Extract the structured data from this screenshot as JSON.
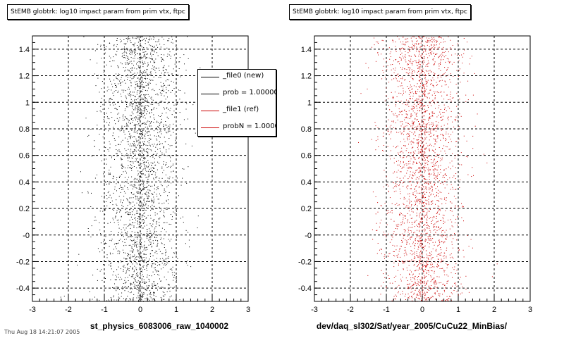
{
  "chart_data": [
    {
      "type": "scatter",
      "title": "StEMB globtrk: log10 impact param from prim vtx, ftpc",
      "xlabel": "st_physics_6083006_raw_1040002",
      "ylabel": "",
      "xlim": [
        -3,
        3
      ],
      "ylim": [
        -0.5,
        1.5
      ],
      "x_ticks": [
        -3,
        -2,
        -1,
        0,
        1,
        2,
        3
      ],
      "x_tick_labels": [
        "-3",
        "-2",
        "-1",
        "0",
        "1",
        "2",
        "3"
      ],
      "y_ticks": [
        -0.4,
        -0.2,
        0,
        0.2,
        0.4,
        0.6,
        0.8,
        1,
        1.2,
        1.4
      ],
      "y_tick_labels": [
        "-0.4",
        "-0.2",
        "-0",
        "0.2",
        "0.4",
        "0.6",
        "0.8",
        "1",
        "1.2",
        "1.4"
      ],
      "grid": true,
      "series": [
        {
          "name": "_file0 (new)",
          "color": "#000000",
          "distribution": "x centered near 0, spread about 0.6, uniform in y over range"
        }
      ],
      "legend": {
        "placement": "top-right",
        "entries": [
          {
            "label": "_file0 (new)",
            "color": "#000000"
          },
          {
            "label": "prob = 1.000000",
            "color": "#000000"
          },
          {
            "label": "_file1 (ref)",
            "color": "#cc0000"
          },
          {
            "label": "probN = 1.000000",
            "color": "#cc0000"
          }
        ]
      }
    },
    {
      "type": "scatter",
      "title": "StEMB globtrk: log10 impact param from prim vtx, ftpc",
      "xlabel": "dev/daq_sl302/Sat/year_2005/CuCu22_MinBias/",
      "ylabel": "",
      "xlim": [
        -3,
        3
      ],
      "ylim": [
        -0.5,
        1.5
      ],
      "x_ticks": [
        -3,
        -2,
        -1,
        0,
        1,
        2,
        3
      ],
      "x_tick_labels": [
        "-3",
        "-2",
        "-1",
        "0",
        "1",
        "2",
        "3"
      ],
      "y_ticks": [
        -0.4,
        -0.2,
        0,
        0.2,
        0.4,
        0.6,
        0.8,
        1,
        1.2,
        1.4
      ],
      "y_tick_labels": [
        "-0.4",
        "-0.2",
        "-0",
        "0.2",
        "0.4",
        "0.6",
        "0.8",
        "1",
        "1.2",
        "1.4"
      ],
      "grid": true,
      "series": [
        {
          "name": "_file1 (ref)",
          "color": "#cc0000",
          "distribution": "x centered near 0, spread about 0.6, uniform in y over range"
        }
      ]
    }
  ],
  "footer": {
    "text": "Thu Aug 18 14:21:07 2005"
  }
}
